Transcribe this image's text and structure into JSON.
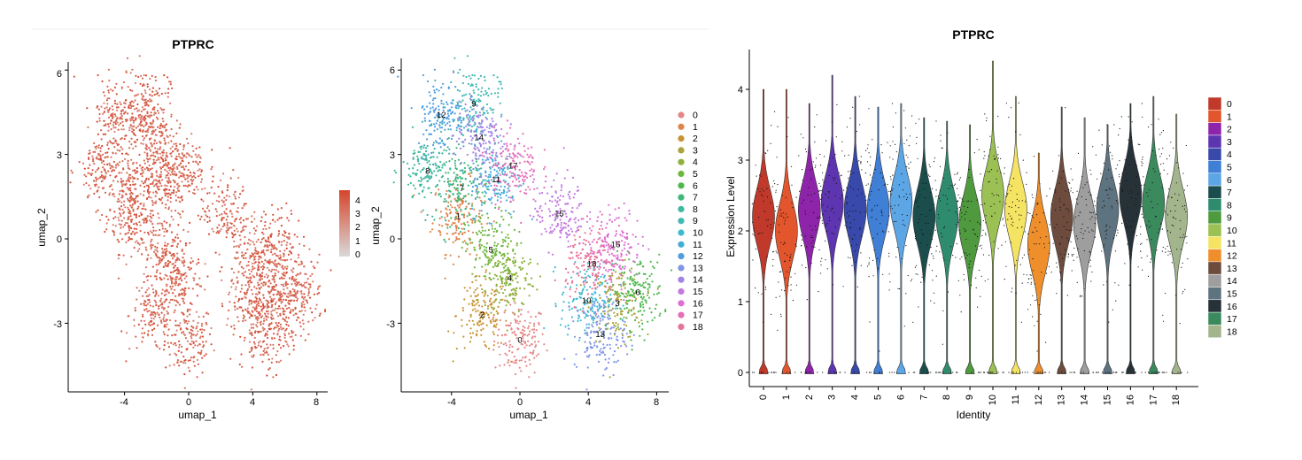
{
  "chart_data": [
    {
      "type": "scatter",
      "title": "PTPRC",
      "xlabel": "umap_1",
      "ylabel": "umap_2",
      "xticks": [
        "-4",
        "0",
        "4",
        "8"
      ],
      "yticks": [
        "-3",
        "0",
        "3",
        "6"
      ],
      "colorbar": {
        "ticks": [
          "0",
          "1",
          "2",
          "3",
          "4"
        ],
        "low": "#d9d9d9",
        "high": "#d6452b",
        "range": [
          0,
          4
        ]
      }
    },
    {
      "type": "scatter",
      "title": "",
      "xlabel": "umap_1",
      "ylabel": "umap_2",
      "xticks": [
        "-4",
        "0",
        "4",
        "8"
      ],
      "yticks": [
        "-3",
        "0",
        "3",
        "6"
      ],
      "clusters": [
        {
          "label": "0",
          "color": "#e58787",
          "center": [
            0.0,
            -3.6
          ]
        },
        {
          "label": "1",
          "color": "#e0834a",
          "center": [
            -3.6,
            0.8
          ]
        },
        {
          "label": "2",
          "color": "#c79435",
          "center": [
            -2.2,
            -2.7
          ]
        },
        {
          "label": "3",
          "color": "#a9a43c",
          "center": [
            5.7,
            -2.3
          ]
        },
        {
          "label": "4",
          "color": "#8fb13c",
          "center": [
            -0.6,
            -1.4
          ]
        },
        {
          "label": "5",
          "color": "#6db73f",
          "center": [
            -1.7,
            -0.4
          ]
        },
        {
          "label": "6",
          "color": "#4db84e",
          "center": [
            6.9,
            -1.9
          ]
        },
        {
          "label": "7",
          "color": "#3fb879",
          "center": [
            -3.4,
            1.8
          ]
        },
        {
          "label": "8",
          "color": "#3fb89f",
          "center": [
            -5.4,
            2.4
          ]
        },
        {
          "label": "9",
          "color": "#43b9b3",
          "center": [
            -2.7,
            4.8
          ]
        },
        {
          "label": "10",
          "color": "#3ebad0",
          "center": [
            3.9,
            -2.2
          ]
        },
        {
          "label": "11",
          "color": "#44acd9",
          "center": [
            -1.4,
            2.1
          ]
        },
        {
          "label": "12",
          "color": "#4e9de0",
          "center": [
            -4.6,
            4.4
          ]
        },
        {
          "label": "13",
          "color": "#7f95e6",
          "center": [
            4.7,
            -3.4
          ]
        },
        {
          "label": "14",
          "color": "#a184e6",
          "center": [
            -2.4,
            3.6
          ]
        },
        {
          "label": "15",
          "color": "#c279e0",
          "center": [
            2.3,
            0.9
          ]
        },
        {
          "label": "16",
          "color": "#de6ed2",
          "center": [
            5.6,
            -0.2
          ]
        },
        {
          "label": "17",
          "color": "#e56fb7",
          "center": [
            -0.4,
            2.6
          ]
        },
        {
          "label": "18",
          "color": "#e7739a",
          "center": [
            4.2,
            -0.9
          ]
        }
      ]
    },
    {
      "type": "violin",
      "title": "PTPRC",
      "xlabel": "Identity",
      "ylabel": "Expression Level",
      "yticks": [
        "0",
        "1",
        "2",
        "3",
        "4"
      ],
      "ylim": [
        -0.05,
        4.4
      ],
      "categories": [
        "0",
        "1",
        "2",
        "3",
        "4",
        "5",
        "6",
        "7",
        "8",
        "9",
        "10",
        "11",
        "12",
        "13",
        "14",
        "15",
        "16",
        "17",
        "18"
      ],
      "series": [
        {
          "name": "0",
          "color": "#c0392b",
          "max": 4.0,
          "median": 2.2
        },
        {
          "name": "1",
          "color": "#e2552d",
          "max": 4.0,
          "median": 2.0
        },
        {
          "name": "2",
          "color": "#8e24aa",
          "max": 3.8,
          "median": 2.3
        },
        {
          "name": "3",
          "color": "#5e35b1",
          "max": 4.2,
          "median": 2.4
        },
        {
          "name": "4",
          "color": "#3949ab",
          "max": 3.9,
          "median": 2.3
        },
        {
          "name": "5",
          "color": "#3f7fd6",
          "max": 3.75,
          "median": 2.3
        },
        {
          "name": "6",
          "color": "#5ca6e6",
          "max": 3.8,
          "median": 2.4
        },
        {
          "name": "7",
          "color": "#1b4d4d",
          "max": 3.6,
          "median": 2.2
        },
        {
          "name": "8",
          "color": "#2e8b6e",
          "max": 3.55,
          "median": 2.2
        },
        {
          "name": "9",
          "color": "#4f9a3f",
          "max": 3.5,
          "median": 2.1
        },
        {
          "name": "10",
          "color": "#9bc053",
          "max": 4.4,
          "median": 2.5
        },
        {
          "name": "11",
          "color": "#f5e363",
          "max": 3.9,
          "median": 2.3
        },
        {
          "name": "12",
          "color": "#ef8f2c",
          "max": 3.1,
          "median": 1.8
        },
        {
          "name": "13",
          "color": "#6d4c3d",
          "max": 3.75,
          "median": 2.2
        },
        {
          "name": "14",
          "color": "#9e9e9e",
          "max": 3.6,
          "median": 2.1
        },
        {
          "name": "15",
          "color": "#5e7380",
          "max": 3.5,
          "median": 2.3
        },
        {
          "name": "16",
          "color": "#263238",
          "max": 3.8,
          "median": 2.5
        },
        {
          "name": "17",
          "color": "#3a8a5e",
          "max": 3.9,
          "median": 2.4
        },
        {
          "name": "18",
          "color": "#a3b58d",
          "max": 3.65,
          "median": 2.2
        }
      ]
    }
  ]
}
